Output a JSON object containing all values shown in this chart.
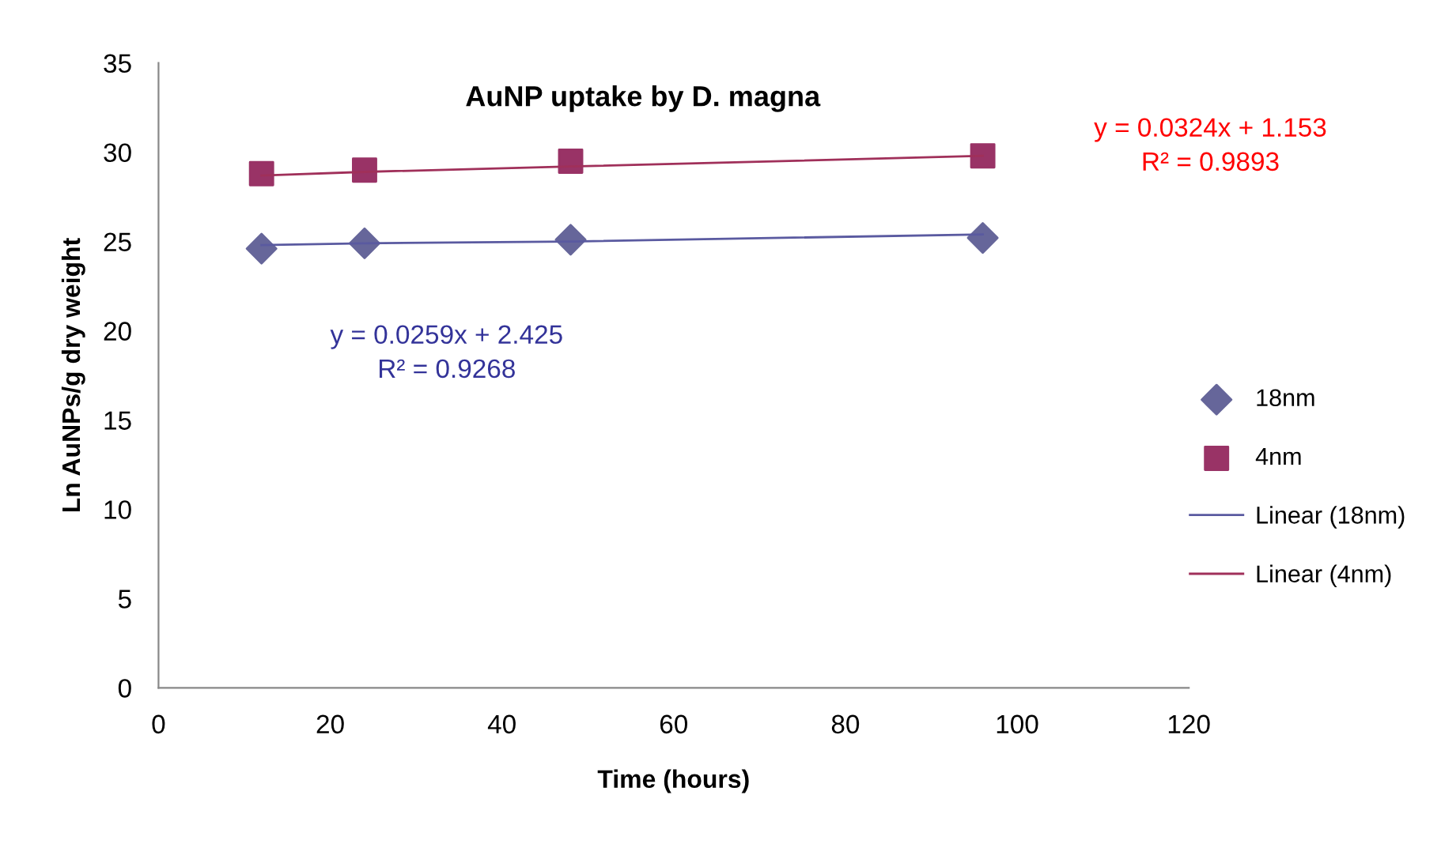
{
  "chart_data": {
    "type": "scatter",
    "title": "AuNP uptake by D. magna",
    "xlabel": "Time (hours)",
    "ylabel": "Ln AuNPs/g dry weight",
    "x": [
      12,
      24,
      48,
      96
    ],
    "series": [
      {
        "name": "18nm",
        "color": "#66669a",
        "marker": "diamond",
        "values": [
          24.6,
          24.9,
          25.1,
          25.2
        ]
      },
      {
        "name": "4nm",
        "color": "#993366",
        "marker": "square",
        "values": [
          28.8,
          29.0,
          29.5,
          29.8
        ]
      },
      {
        "name": "Linear (18nm)",
        "type": "line",
        "color": "#5a5aa0",
        "marker": "none",
        "values": [
          24.8,
          24.9,
          25.0,
          25.4
        ]
      },
      {
        "name": "Linear (4nm)",
        "type": "line",
        "color": "#a0305a",
        "marker": "none",
        "values": [
          28.7,
          28.9,
          29.2,
          29.8
        ]
      }
    ],
    "annotations": [
      "y = 0.0324x + 1.153\nR² = 0.9893",
      "y = 0.0259x + 2.425\nR² = 0.9268"
    ],
    "xlim": [
      0,
      120
    ],
    "xticks": [
      0,
      20,
      40,
      60,
      80,
      100,
      120
    ],
    "ylim": [
      0,
      35
    ],
    "yticks": [
      0,
      5,
      10,
      15,
      20,
      25,
      30,
      35
    ],
    "grid": false,
    "legend": "right"
  }
}
